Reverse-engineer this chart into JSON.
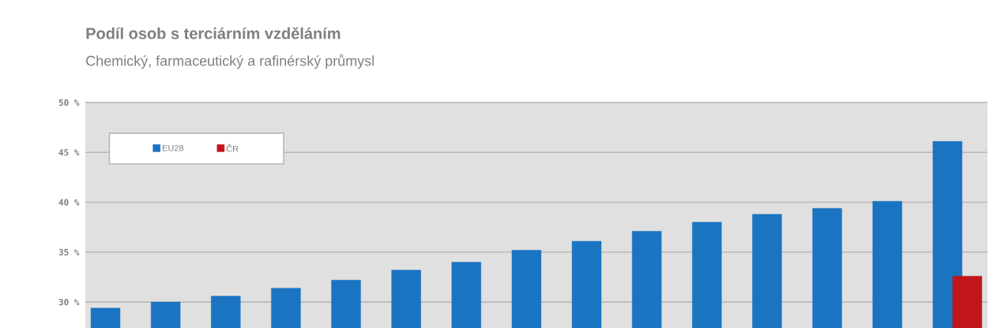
{
  "chart_data": {
    "type": "bar",
    "title": "Podíl osob s terciárním vzděláním",
    "subtitle": "Chemický, farmaceutický a rafinérský průmysl",
    "categories": [
      null,
      null,
      null,
      null,
      null,
      null,
      null,
      null,
      null,
      null,
      null,
      null,
      null,
      null,
      null
    ],
    "series": [
      {
        "name": "EU28",
        "color": "#1a74c2",
        "values": [
          29.4,
          30.0,
          30.6,
          31.4,
          32.2,
          33.2,
          34.0,
          35.2,
          36.1,
          37.1,
          38.0,
          38.8,
          39.4,
          40.1,
          46.1
        ]
      },
      {
        "name": "ČR",
        "color": "#c0161a",
        "values": [
          null,
          null,
          null,
          null,
          null,
          null,
          null,
          null,
          null,
          null,
          null,
          null,
          null,
          null,
          32.6
        ]
      }
    ],
    "ylim": [
      27.4,
      50
    ],
    "yticks": [
      {
        "value": 30,
        "label": "30 %"
      },
      {
        "value": 35,
        "label": "35 %"
      },
      {
        "value": 40,
        "label": "40 %"
      },
      {
        "value": 45,
        "label": "45 %"
      },
      {
        "value": 50,
        "label": "50 %"
      }
    ],
    "grid": "y",
    "legend": "top left"
  }
}
